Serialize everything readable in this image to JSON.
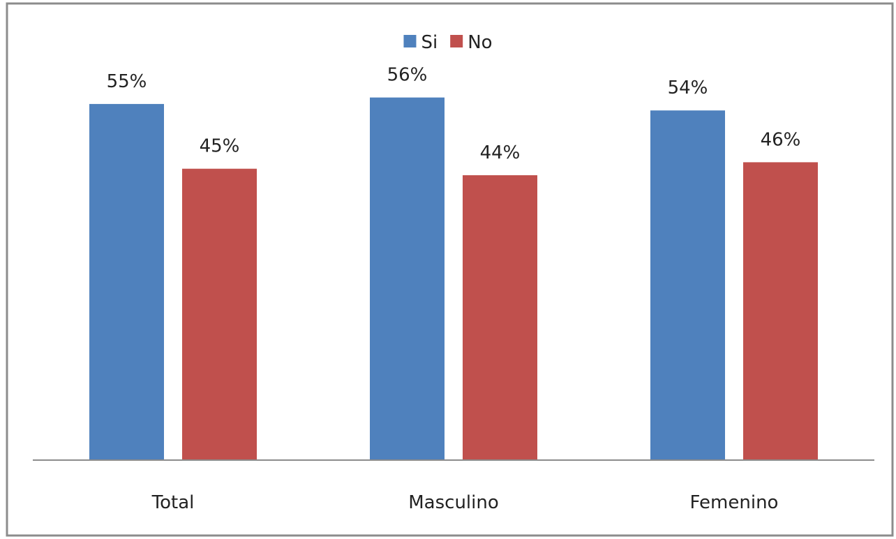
{
  "chart_data": {
    "type": "bar",
    "categories": [
      "Total",
      "Masculino",
      "Femenino"
    ],
    "series": [
      {
        "name": "Si",
        "values": [
          55,
          56,
          54
        ],
        "labels": [
          "55%",
          "56%",
          "54%"
        ],
        "color": "#4F81BD"
      },
      {
        "name": "No",
        "values": [
          45,
          44,
          46
        ],
        "labels": [
          "45%",
          "44%",
          "46%"
        ],
        "color": "#C0504D"
      }
    ],
    "title": "",
    "xlabel": "",
    "ylabel": "",
    "ylim": [
      0,
      62
    ],
    "legend": "top-center",
    "grid": false
  }
}
